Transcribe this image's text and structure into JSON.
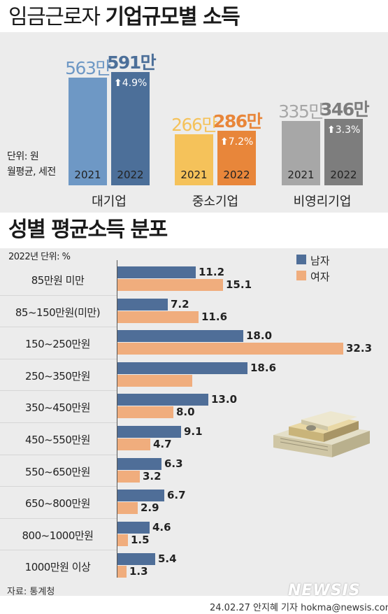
{
  "title1_light": "임금근로자",
  "title1_bold": "기업규모별 소득",
  "unit_note_top": [
    "단위: 원",
    "월평균, 세전"
  ],
  "title2": "성별 평균소득 분포",
  "unit_note_bottom": "2022년 단위: %",
  "source": "자료: 통계청",
  "credit": "24.02.27 안지혜 기자 hokma@newsis.com",
  "watermark": "NEWSIS",
  "colors": {
    "large_2021": "#6e98c5",
    "large_2022": "#4c6f99",
    "small_2021": "#f5c25a",
    "small_2022": "#e8863a",
    "nonprofit_2021": "#a7a7a7",
    "nonprofit_2022": "#7d7d7d",
    "male": "#4f6e98",
    "female": "#f0ad7d"
  },
  "chart_data": [
    {
      "type": "bar",
      "title": "임금근로자 기업규모별 소득",
      "categories": [
        "대기업",
        "중소기업",
        "비영리기업"
      ],
      "series": [
        {
          "name": "2021",
          "values": [
            563,
            266,
            335
          ],
          "labels": [
            "563만",
            "266만",
            "335만"
          ]
        },
        {
          "name": "2022",
          "values": [
            591,
            286,
            346
          ],
          "labels": [
            "591만",
            "286만",
            "346만"
          ]
        }
      ],
      "changes": [
        "4.9%",
        "7.2%",
        "3.3%"
      ],
      "unit": "만원"
    },
    {
      "type": "bar",
      "orientation": "horizontal",
      "title": "성별 평균소득 분포",
      "categories": [
        "85만원 미만",
        "85~150만원(미만)",
        "150~250만원",
        "250~350만원",
        "350~450만원",
        "450~550만원",
        "550~650만원",
        "650~800만원",
        "800~1000만원",
        "1000만원 이상"
      ],
      "series": [
        {
          "name": "남자",
          "values": [
            11.2,
            7.2,
            18.0,
            18.6,
            13.0,
            9.1,
            6.3,
            6.7,
            4.6,
            5.4
          ],
          "labels": [
            "11.2",
            "7.2",
            "18.0",
            "18.6",
            "13.0",
            "9.1",
            "6.3",
            "6.7",
            "4.6",
            "5.4"
          ]
        },
        {
          "name": "여자",
          "values": [
            15.1,
            11.6,
            32.3,
            10.7,
            8.0,
            4.7,
            3.2,
            2.9,
            1.5,
            1.3
          ],
          "labels": [
            "15.1",
            "11.6",
            "32.3",
            "",
            "8.0",
            "4.7",
            "3.2",
            "2.9",
            "1.5",
            "1.3"
          ]
        }
      ],
      "legend_position": "top-right"
    }
  ]
}
